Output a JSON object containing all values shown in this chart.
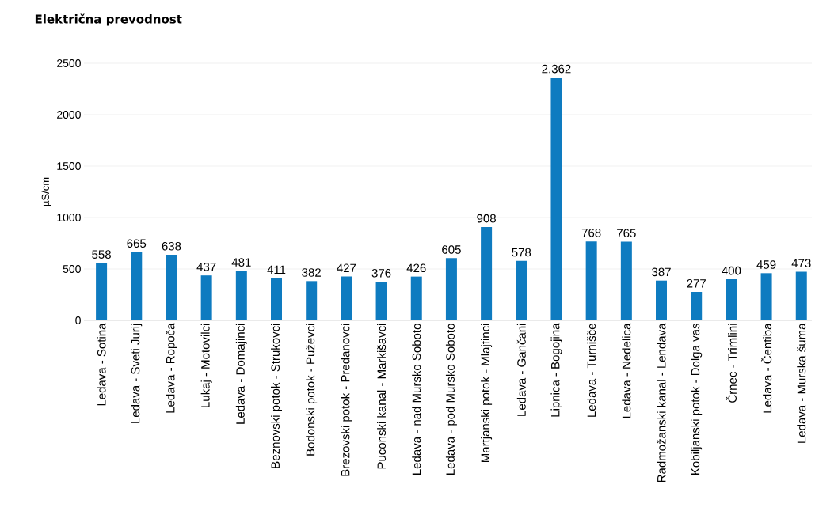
{
  "chart_data": {
    "type": "bar",
    "title": "Električna prevodnost",
    "ylabel": "µS/cm",
    "categories": [
      "Ledava - Sotina",
      "Ledava - Sveti Jurij",
      "Ledava - Ropoča",
      "Lukaj - Motovilci",
      "Ledava - Domajinci",
      "Beznovski potok - Strukovci",
      "Bodonski potok - Puževci",
      "Brezovski potok - Predanovci",
      "Puconski kanal - Markišavci",
      "Ledava - nad Mursko Soboto",
      "Ledava - pod Mursko Soboto",
      "Martjanski potok - Mlajtinci",
      "Ledava - Gančani",
      "Lipnica - Bogojina",
      "Ledava - Turnišče",
      "Ledava - Nedelica",
      "Radmožanski kanal - Lendava",
      "Kobiljanski potok - Dolga vas",
      "Črnec - Trimlini",
      "Ledava - Čentiba",
      "Ledava - Murska šuma"
    ],
    "values": [
      558,
      665,
      638,
      437,
      481,
      411,
      382,
      427,
      376,
      426,
      605,
      908,
      578,
      2362,
      768,
      765,
      387,
      277,
      400,
      459,
      473
    ],
    "value_labels": [
      "558",
      "665",
      "638",
      "437",
      "481",
      "411",
      "382",
      "427",
      "376",
      "426",
      "605",
      "908",
      "578",
      "2.362",
      "768",
      "765",
      "387",
      "277",
      "400",
      "459",
      "473"
    ],
    "color": "#0e7bc0",
    "ylim": [
      0,
      2500
    ],
    "yticks": [
      0,
      500,
      1000,
      1500,
      2000,
      2500
    ],
    "grid": "y"
  }
}
